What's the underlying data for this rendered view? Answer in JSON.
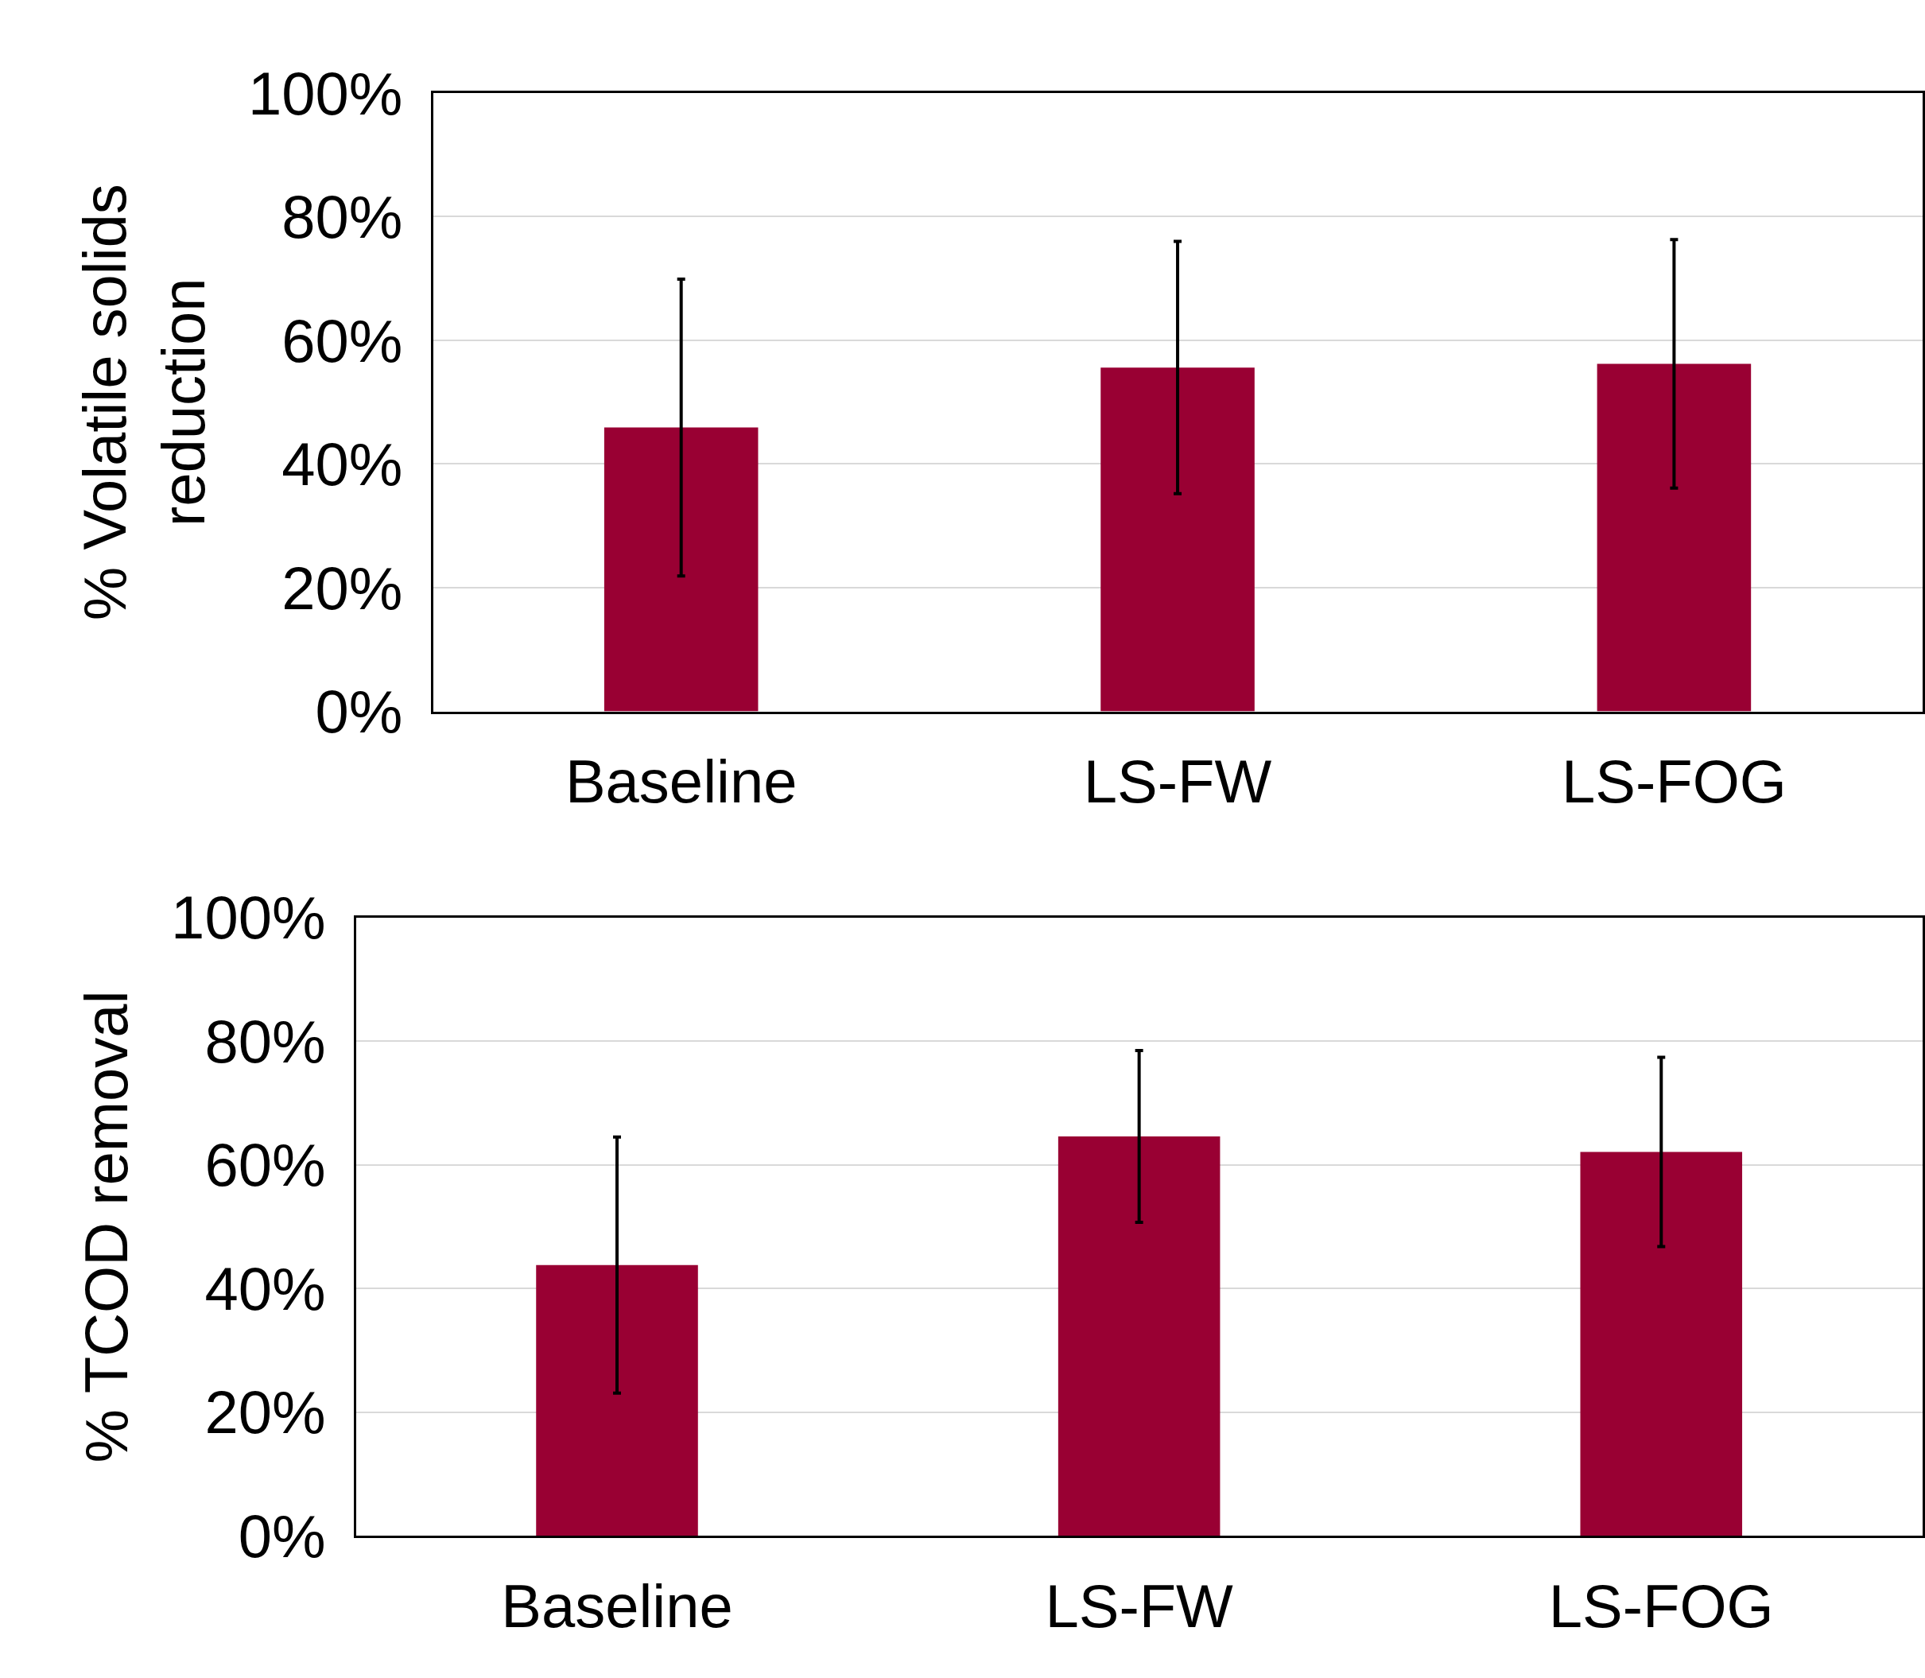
{
  "chart_data": [
    {
      "type": "bar",
      "ylabel": "% Volatile solids reduction",
      "categories": [
        "Baseline",
        "LS-FW",
        "LS-FOG"
      ],
      "values": [
        45.9,
        55.6,
        56.2
      ],
      "errors": [
        24,
        20.4,
        20.1
      ],
      "color": "#990033",
      "ylim": [
        0,
        100
      ],
      "yticks": [
        {
          "value": 0,
          "label": "0%"
        },
        {
          "value": 20,
          "label": "20%"
        },
        {
          "value": 40,
          "label": "40%"
        },
        {
          "value": 60,
          "label": "60%"
        },
        {
          "value": 80,
          "label": "80%"
        },
        {
          "value": 100,
          "label": "100%"
        }
      ],
      "grid": "y",
      "legend": false
    },
    {
      "type": "bar",
      "ylabel": "% TCOD removal",
      "categories": [
        "Baseline",
        "LS-FW",
        "LS-FOG"
      ],
      "values": [
        43.8,
        64.6,
        62.1
      ],
      "errors": [
        20.7,
        13.9,
        15.3
      ],
      "color": "#990033",
      "ylim": [
        0,
        100
      ],
      "yticks": [
        {
          "value": 0,
          "label": "0%"
        },
        {
          "value": 20,
          "label": "20%"
        },
        {
          "value": 40,
          "label": "40%"
        },
        {
          "value": 60,
          "label": "60%"
        },
        {
          "value": 80,
          "label": "80%"
        },
        {
          "value": 100,
          "label": "100%"
        }
      ],
      "grid": "y",
      "legend": false
    }
  ]
}
